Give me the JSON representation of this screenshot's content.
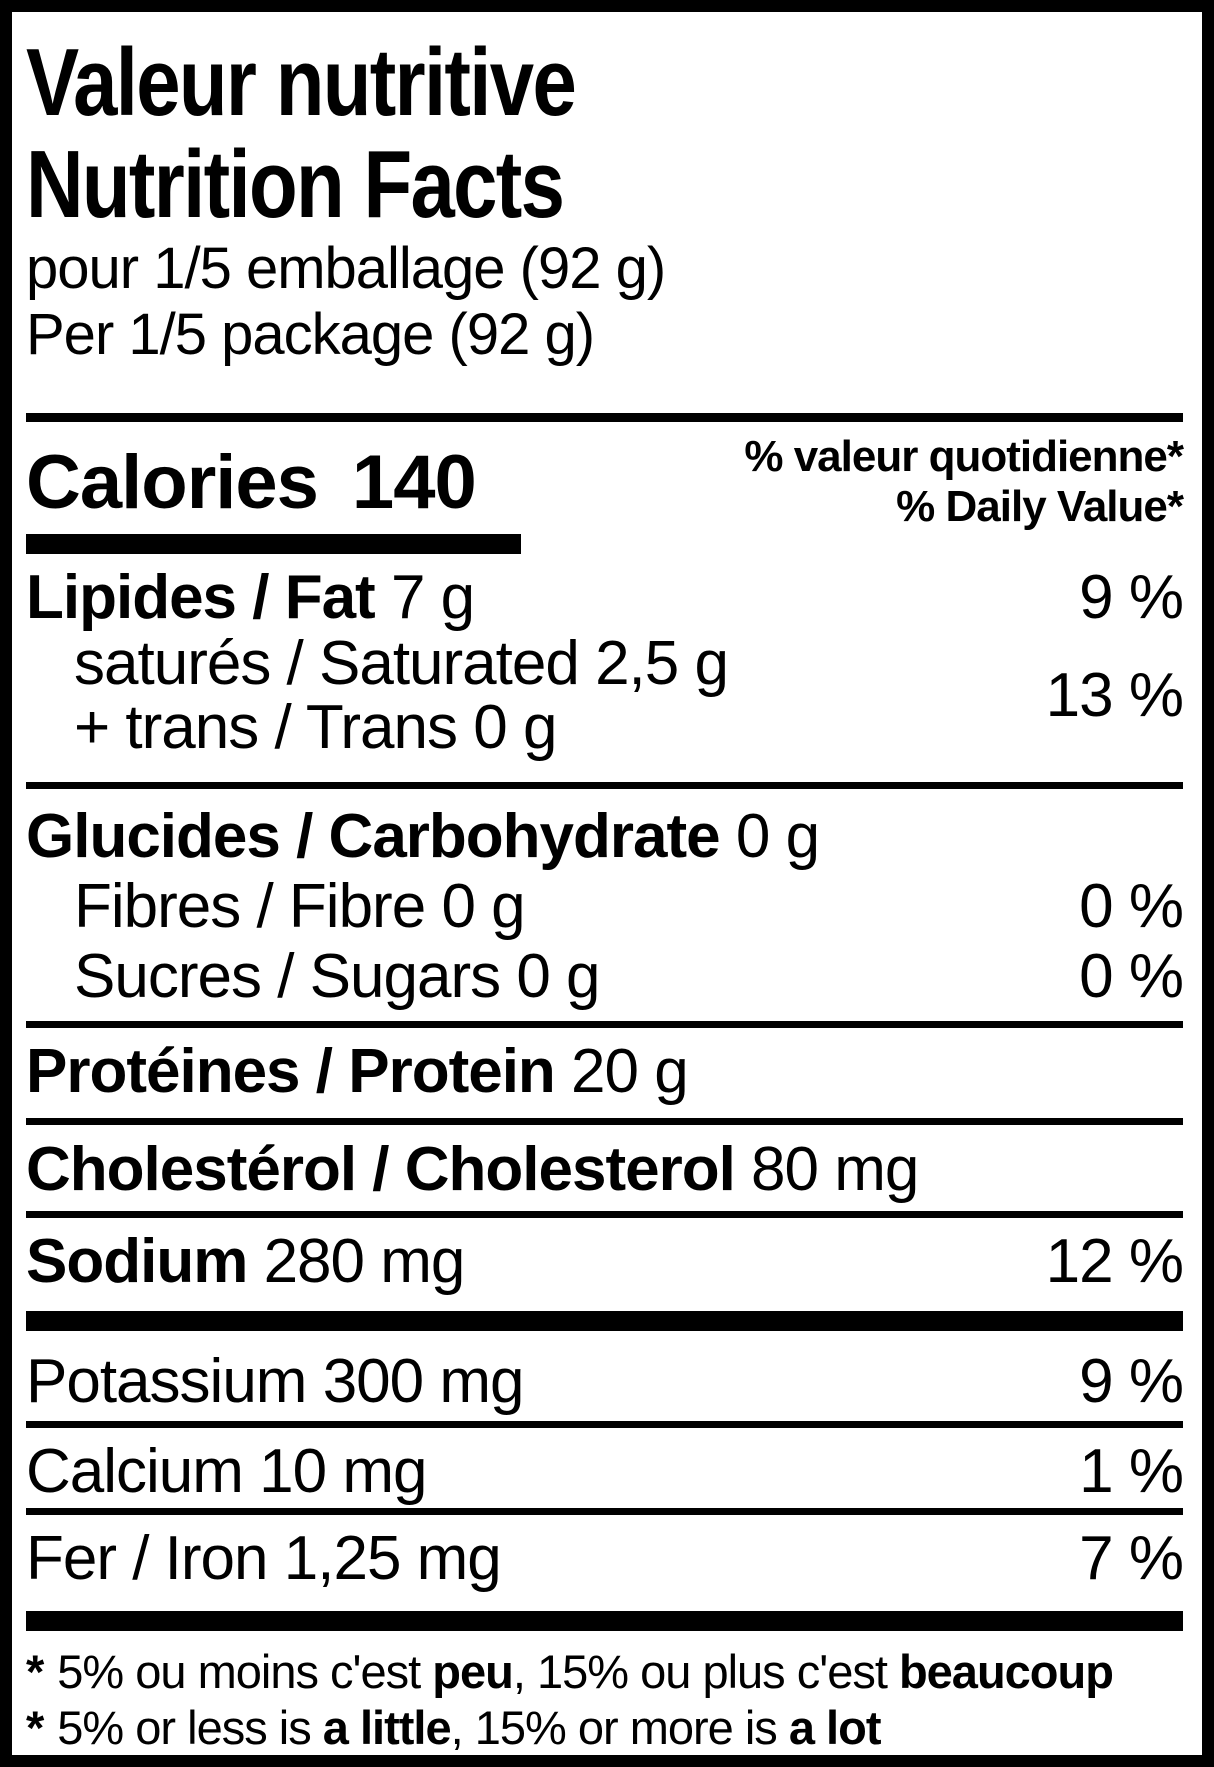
{
  "header": {
    "title_fr": "Valeur nutritive",
    "title_en": "Nutrition Facts",
    "serving_fr": "pour 1/5 emballage (92 g)",
    "serving_en": "Per 1/5 package (92 g)"
  },
  "calories": {
    "label": "Calories",
    "value": "140"
  },
  "daily_value_header": {
    "fr": "% valeur quotidienne*",
    "en": "% Daily Value*"
  },
  "nutrients": {
    "fat": {
      "name": "Lipides / Fat",
      "amount": "7 g",
      "dv": "9 %"
    },
    "saturated": {
      "line1": "saturés / Saturated 2,5 g",
      "line2": "+ trans / Trans 0 g",
      "dv": "13 %"
    },
    "carbohydrate": {
      "name": "Glucides / Carbohydrate",
      "amount": "0 g"
    },
    "fibre": {
      "name": "Fibres / Fibre",
      "amount": "0 g",
      "dv": "0 %"
    },
    "sugars": {
      "name": "Sucres / Sugars",
      "amount": "0 g",
      "dv": "0 %"
    },
    "protein": {
      "name": "Protéines / Protein",
      "amount": "20 g"
    },
    "cholesterol": {
      "name": "Cholestérol / Cholesterol",
      "amount": "80 mg"
    },
    "sodium": {
      "name": "Sodium",
      "amount": "280 mg",
      "dv": "12 %"
    },
    "potassium": {
      "name": "Potassium",
      "amount": "300 mg",
      "dv": "9 %"
    },
    "calcium": {
      "name": "Calcium",
      "amount": "10 mg",
      "dv": "1 %"
    },
    "iron": {
      "name": "Fer / Iron",
      "amount": "1,25 mg",
      "dv": "7 %"
    }
  },
  "footnote": {
    "asterisk": "*",
    "fr": {
      "prefix": "5% ou moins c'est",
      "bold1": "peu",
      "mid": ", 15% ou plus c'est",
      "bold2": "beaucoup"
    },
    "en": {
      "prefix": "5% or less is",
      "bold1": "a little",
      "mid": ", 15% or more is",
      "bold2": "a lot"
    }
  },
  "colors": {
    "ink": "#000000",
    "background": "#ffffff"
  }
}
